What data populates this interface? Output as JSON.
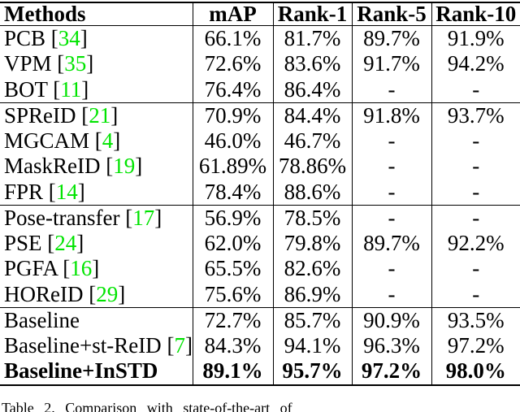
{
  "colors": {
    "citation": "#00e400",
    "text": "#000000",
    "border": "#000000",
    "background": "#ffffff"
  },
  "table": {
    "columns": [
      "Methods",
      "mAP",
      "Rank-1",
      "Rank-5",
      "Rank-10"
    ],
    "rows": [
      {
        "method": "PCB",
        "ref": "34",
        "values": [
          "66.1%",
          "81.7%",
          "89.7%",
          "91.9%"
        ],
        "section_start": false,
        "bold": false
      },
      {
        "method": "VPM",
        "ref": "35",
        "values": [
          "72.6%",
          "83.6%",
          "91.7%",
          "94.2%"
        ],
        "section_start": false,
        "bold": false
      },
      {
        "method": "BOT",
        "ref": "11",
        "values": [
          "76.4%",
          "86.4%",
          "-",
          "-"
        ],
        "section_start": false,
        "bold": false
      },
      {
        "method": "SPReID",
        "ref": "21",
        "values": [
          "70.9%",
          "84.4%",
          "91.8%",
          "93.7%"
        ],
        "section_start": true,
        "bold": false
      },
      {
        "method": "MGCAM",
        "ref": "4",
        "values": [
          "46.0%",
          "46.7%",
          "-",
          "-"
        ],
        "section_start": false,
        "bold": false
      },
      {
        "method": "MaskReID",
        "ref": "19",
        "values": [
          "61.89%",
          "78.86%",
          "-",
          "-"
        ],
        "section_start": false,
        "bold": false
      },
      {
        "method": "FPR",
        "ref": "14",
        "values": [
          "78.4%",
          "88.6%",
          "-",
          "-"
        ],
        "section_start": false,
        "bold": false
      },
      {
        "method": "Pose-transfer",
        "ref": "17",
        "values": [
          "56.9%",
          "78.5%",
          "-",
          "-"
        ],
        "section_start": true,
        "bold": false
      },
      {
        "method": "PSE",
        "ref": "24",
        "values": [
          "62.0%",
          "79.8%",
          "89.7%",
          "92.2%"
        ],
        "section_start": false,
        "bold": false
      },
      {
        "method": "PGFA",
        "ref": "16",
        "values": [
          "65.5%",
          "82.6%",
          "-",
          "-"
        ],
        "section_start": false,
        "bold": false
      },
      {
        "method": "HOReID",
        "ref": "29",
        "values": [
          "75.6%",
          "86.9%",
          "-",
          "-"
        ],
        "section_start": false,
        "bold": false
      },
      {
        "method": "Baseline",
        "ref": null,
        "values": [
          "72.7%",
          "85.7%",
          "90.9%",
          "93.5%"
        ],
        "section_start": true,
        "bold": false
      },
      {
        "method": "Baseline+st-ReID",
        "ref": "7",
        "values": [
          "84.3%",
          "94.1%",
          "96.3%",
          "97.2%"
        ],
        "section_start": false,
        "bold": false
      },
      {
        "method": "Baseline+InSTD",
        "ref": null,
        "values": [
          "89.1%",
          "95.7%",
          "97.2%",
          "98.0%"
        ],
        "section_start": false,
        "bold": true
      }
    ]
  },
  "caption": {
    "text": "Table 2. Comparison with state-of-the-art of"
  }
}
